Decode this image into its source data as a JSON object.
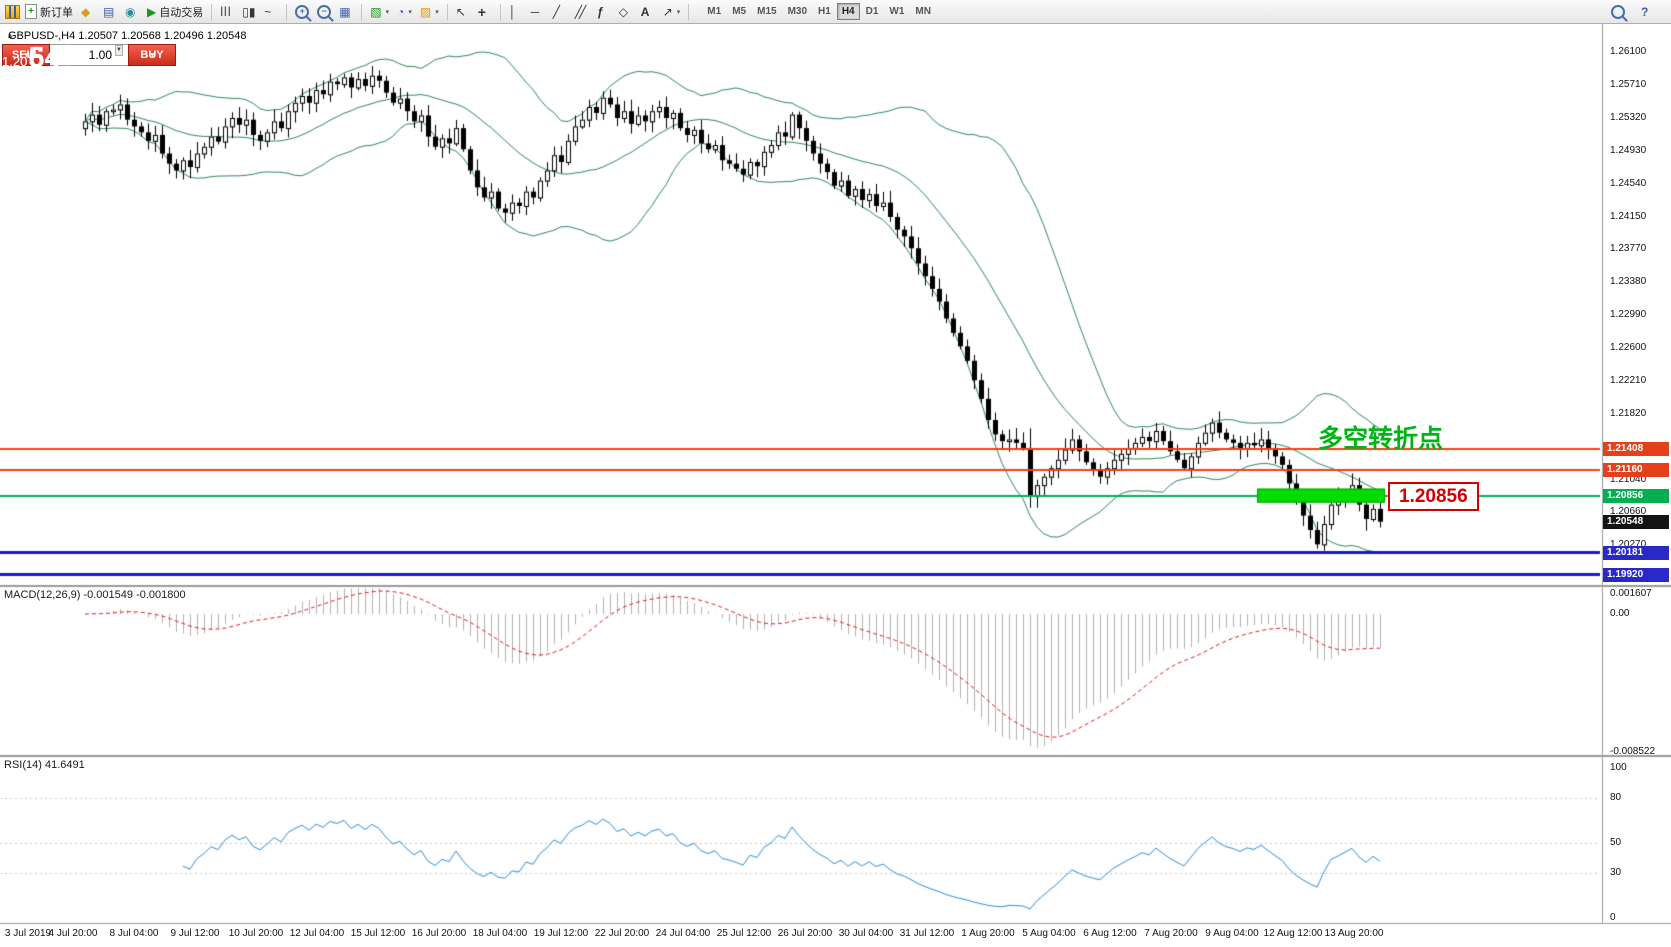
{
  "toolbar": {
    "new_order_label": "新订单",
    "autotrading_label": "自动交易",
    "icons": {
      "new_order": "+",
      "profiles": "◆",
      "market_watch": "▤",
      "data_window": "◉",
      "autotrading": "▶",
      "bars_chart": "|||",
      "candle_chart": "▯▮",
      "line_chart": "~",
      "zoom_in": "+",
      "zoom_out": "−",
      "tile_windows": "▦",
      "new_chart": "▧",
      "periods": "◔",
      "templates": "▨",
      "cursor": "↖",
      "crosshair": "+",
      "vertical_line": "│",
      "horizontal_line": "─",
      "trendline": "╱",
      "channel": "╱╱",
      "fibonacci": "ƒ",
      "shapes": "◇",
      "text_tool": "A",
      "arrows_tool": "↗",
      "dropdown_caret": "▾",
      "help": "?"
    },
    "timeframes": [
      {
        "label": "M1",
        "active": false
      },
      {
        "label": "M5",
        "active": false
      },
      {
        "label": "M15",
        "active": false
      },
      {
        "label": "M30",
        "active": false
      },
      {
        "label": "H1",
        "active": false
      },
      {
        "label": "H4",
        "active": true
      },
      {
        "label": "D1",
        "active": false
      },
      {
        "label": "W1",
        "active": false
      },
      {
        "label": "MN",
        "active": false
      }
    ]
  },
  "trade_panel": {
    "sell_label": "SELL",
    "buy_label": "BUY",
    "volume": "1.00",
    "sell_price_prefix": "1.20",
    "sell_price_big": "54",
    "sell_price_sup": "8",
    "buy_price_prefix": "1.20",
    "buy_price_big": "64",
    "buy_price_sup": "4"
  },
  "chart": {
    "collapse_arrow": "▴",
    "title": "GBPUSD-,H4  1.20507 1.20568 1.20496 1.20548",
    "annotation": {
      "text": "多空转折点",
      "color": "#00b414"
    },
    "price_flag": {
      "text": "1.20856",
      "color": "#d40000"
    },
    "price_axis_ticks": [
      "1.26100",
      "1.25710",
      "1.25320",
      "1.24930",
      "1.24540",
      "1.24150",
      "1.23770",
      "1.23380",
      "1.22990",
      "1.22600",
      "1.22210",
      "1.21820",
      "1.21430",
      "1.21040",
      "1.20660",
      "1.20270",
      "1.19880"
    ],
    "badges": [
      {
        "price": 1.21408,
        "label": "1.21408",
        "bg": "#e4401a"
      },
      {
        "price": 1.2116,
        "label": "1.21160",
        "bg": "#e4401a"
      },
      {
        "price": 1.20856,
        "label": "1.20856",
        "bg": "#00b050"
      },
      {
        "price": 1.20548,
        "label": "1.20548",
        "bg": "#141414"
      },
      {
        "price": 1.20181,
        "label": "1.20181",
        "bg": "#2929c8"
      },
      {
        "price": 1.1992,
        "label": "1.19920",
        "bg": "#2929c8"
      }
    ],
    "hlines": [
      {
        "price": 1.21408,
        "color": "#ff3a14",
        "width": 2
      },
      {
        "price": 1.2116,
        "color": "#ff3a14",
        "width": 2
      },
      {
        "price": 1.20856,
        "color": "#00b050",
        "width": 2
      },
      {
        "price": 1.20181,
        "color": "#1717cf",
        "width": 3
      },
      {
        "price": 1.1992,
        "color": "#1717cf",
        "width": 3
      }
    ],
    "highlight": {
      "from_candle": 168,
      "to_candle": 185,
      "price": 1.20856,
      "color": "#00dc00"
    }
  },
  "chart_data": {
    "type": "candlestick",
    "symbol": "GBPUSD-",
    "period": "H4",
    "bollinger": {
      "period": 20,
      "deviation": 2,
      "color": "#2E8B57"
    },
    "first_open": 1.252,
    "closes": [
      1.2528,
      1.2536,
      1.2524,
      1.254,
      1.2542,
      1.2548,
      1.253,
      1.2522,
      1.2515,
      1.2505,
      1.2512,
      1.249,
      1.2478,
      1.247,
      1.2482,
      1.2474,
      1.249,
      1.2498,
      1.251,
      1.2504,
      1.2522,
      1.2532,
      1.2524,
      1.253,
      1.2512,
      1.2505,
      1.2515,
      1.2528,
      1.252,
      1.254,
      1.255,
      1.2558,
      1.255,
      1.2565,
      1.256,
      1.2575,
      1.2572,
      1.258,
      1.2568,
      1.2578,
      1.257,
      1.2582,
      1.2576,
      1.2562,
      1.255,
      1.2555,
      1.254,
      1.2528,
      1.2535,
      1.251,
      1.2498,
      1.2508,
      1.2502,
      1.252,
      1.2495,
      1.247,
      1.245,
      1.2438,
      1.2445,
      1.2425,
      1.242,
      1.2432,
      1.2428,
      1.2445,
      1.2438,
      1.2458,
      1.247,
      1.2488,
      1.248,
      1.2505,
      1.2522,
      1.253,
      1.2545,
      1.2538,
      1.2556,
      1.2548,
      1.2532,
      1.254,
      1.2525,
      1.2535,
      1.2528,
      1.254,
      1.2545,
      1.2532,
      1.2538,
      1.252,
      1.2512,
      1.2518,
      1.2502,
      1.2495,
      1.25,
      1.2482,
      1.2478,
      1.2472,
      1.2465,
      1.248,
      1.2475,
      1.2492,
      1.25,
      1.2515,
      1.251,
      1.2536,
      1.252,
      1.2505,
      1.249,
      1.2478,
      1.2468,
      1.2452,
      1.2458,
      1.244,
      1.2448,
      1.2435,
      1.2442,
      1.2428,
      1.2432,
      1.2415,
      1.24,
      1.2392,
      1.2378,
      1.236,
      1.2345,
      1.233,
      1.2315,
      1.2295,
      1.2278,
      1.2262,
      1.2245,
      1.2222,
      1.22,
      1.2175,
      1.2158,
      1.215,
      1.2152,
      1.2148,
      1.2142,
      1.2085,
      1.2098,
      1.2108,
      1.2118,
      1.2128,
      1.214,
      1.2152,
      1.2138,
      1.2125,
      1.2115,
      1.2108,
      1.2118,
      1.2128,
      1.2135,
      1.2142,
      1.2148,
      1.2155,
      1.215,
      1.2162,
      1.215,
      1.2138,
      1.2128,
      1.2118,
      1.2132,
      1.2148,
      1.216,
      1.2172,
      1.216,
      1.2152,
      1.2148,
      1.2142,
      1.2148,
      1.2145,
      1.2152,
      1.2142,
      1.2132,
      1.2122,
      1.21,
      1.208,
      1.2062,
      1.2045,
      1.2028,
      1.2052,
      1.2075,
      1.2082,
      1.209,
      1.2098,
      1.2075,
      1.2058,
      1.207,
      1.20548
    ]
  },
  "macd": {
    "label": "MACD(12,26,9) -0.001549 -0.001800",
    "fast": 12,
    "slow": 26,
    "signal": 9,
    "main_value": -0.001549,
    "signal_value": -0.0018,
    "axis": [
      {
        "label": "0.001607",
        "value": 0.001607
      },
      {
        "label": "0.00",
        "value": 0
      },
      {
        "label": "-0.008522",
        "value": -0.008522
      }
    ]
  },
  "rsi": {
    "label": "RSI(14) 41.6491",
    "period": 14,
    "value": 41.6491,
    "levels": [
      80,
      50,
      30
    ],
    "axis": [
      {
        "label": "100",
        "value": 100
      },
      {
        "label": "80",
        "value": 80
      },
      {
        "label": "50",
        "value": 50
      },
      {
        "label": "30",
        "value": 30
      },
      {
        "label": "0",
        "value": 0
      }
    ]
  },
  "time_axis": {
    "labels": [
      "3 Jul 2019",
      "4 Jul 20:00",
      "8 Jul 04:00",
      "9 Jul 12:00",
      "10 Jul 20:00",
      "12 Jul 04:00",
      "15 Jul 12:00",
      "16 Jul 20:00",
      "18 Jul 04:00",
      "19 Jul 12:00",
      "22 Jul 20:00",
      "24 Jul 04:00",
      "25 Jul 12:00",
      "26 Jul 20:00",
      "30 Jul 04:00",
      "31 Jul 12:00",
      "1 Aug 20:00",
      "5 Aug 04:00",
      "6 Aug 12:00",
      "7 Aug 20:00",
      "9 Aug 04:00",
      "12 Aug 12:00",
      "13 Aug 20:00"
    ]
  }
}
